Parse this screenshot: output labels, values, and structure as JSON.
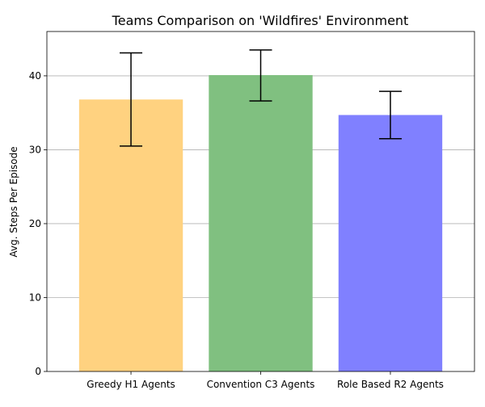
{
  "chart_data": {
    "type": "bar",
    "title": "Teams Comparison on 'Wildfires' Environment",
    "xlabel": "",
    "ylabel": "Avg. Steps Per Episode",
    "categories": [
      "Greedy H1 Agents",
      "Convention C3 Agents",
      "Role Based R2 Agents"
    ],
    "values": [
      36.8,
      40.1,
      34.7
    ],
    "error_low": [
      30.5,
      36.6,
      31.5
    ],
    "error_high": [
      43.1,
      43.5,
      37.9
    ],
    "colors": [
      "#ffd280",
      "#80c080",
      "#8080ff"
    ],
    "ylim": [
      0,
      46
    ],
    "yticks": [
      0,
      10,
      20,
      30,
      40
    ],
    "grid": "y",
    "legend": "none"
  }
}
